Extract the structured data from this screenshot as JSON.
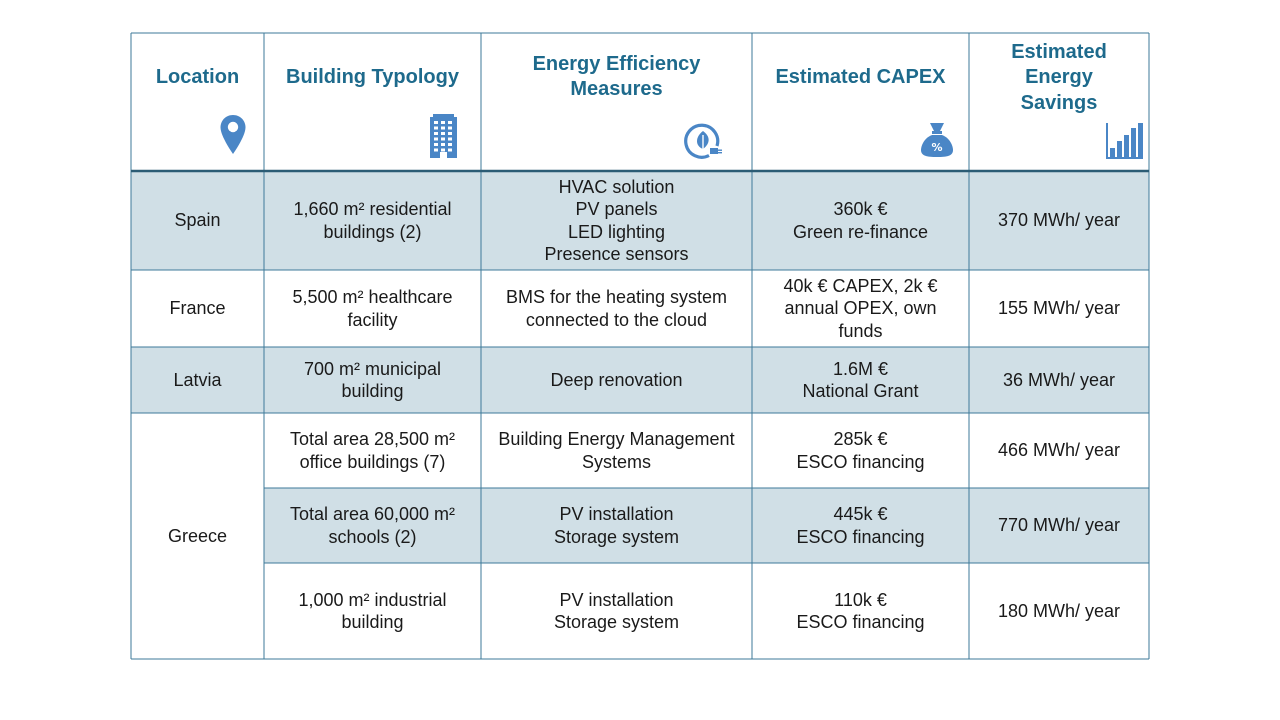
{
  "table": {
    "headers": [
      {
        "key": "location",
        "lines": [
          "Location"
        ],
        "icon": "location-pin-icon"
      },
      {
        "key": "building",
        "lines": [
          "Building Typology"
        ],
        "icon": "office-building-icon"
      },
      {
        "key": "measures",
        "lines": [
          "Energy Efficiency",
          "Measures"
        ],
        "icon": "leaf-plug-icon"
      },
      {
        "key": "capex",
        "lines": [
          "Estimated CAPEX"
        ],
        "icon": "money-bag-icon"
      },
      {
        "key": "savings",
        "lines": [
          "Estimated",
          "Energy",
          "Savings"
        ],
        "icon": "bar-chart-icon"
      }
    ],
    "rows": [
      {
        "location": [
          "Spain"
        ],
        "building": [
          "1,660 m² residential",
          "buildings (2)"
        ],
        "measures": [
          "HVAC solution",
          "PV panels",
          "LED lighting",
          "Presence sensors"
        ],
        "capex": [
          "360k €",
          "Green re-finance"
        ],
        "savings": [
          "370 MWh/ year"
        ]
      },
      {
        "location": [
          "France"
        ],
        "building": [
          "5,500 m² healthcare",
          "facility"
        ],
        "measures": [
          "BMS for the heating system",
          "connected to the cloud"
        ],
        "capex": [
          "40k € CAPEX, 2k €",
          "annual OPEX, own",
          "funds"
        ],
        "savings": [
          "155 MWh/ year"
        ]
      },
      {
        "location": [
          "Latvia"
        ],
        "building": [
          "700 m² municipal",
          "building"
        ],
        "measures": [
          "Deep renovation"
        ],
        "capex": [
          "1.6M €",
          "National Grant"
        ],
        "savings": [
          "36 MWh/ year"
        ]
      },
      {
        "location": [
          "Greece"
        ],
        "building": [
          "Total area 28,500 m²",
          "office buildings (7)"
        ],
        "measures": [
          "Building Energy Management",
          "Systems"
        ],
        "capex": [
          "285k €",
          "ESCO financing"
        ],
        "savings": [
          "466 MWh/ year"
        ]
      },
      {
        "building": [
          "Total area 60,000 m²",
          "schools (2)"
        ],
        "measures": [
          "PV installation",
          "Storage system"
        ],
        "capex": [
          "445k €",
          "ESCO financing"
        ],
        "savings": [
          "770 MWh/ year"
        ]
      },
      {
        "building": [
          "1,000 m² industrial",
          "building"
        ],
        "measures": [
          "PV installation",
          "Storage system"
        ],
        "capex": [
          "110k €",
          "ESCO financing"
        ],
        "savings": [
          "180 MWh/ year"
        ]
      }
    ]
  },
  "colors": {
    "header_text": "#1e6a8c",
    "icon": "#4a86c6",
    "shaded_row": "#d0dfe6",
    "plain_row": "#ffffff",
    "border": "#3e7a99",
    "header_rule": "#2b5c75"
  }
}
